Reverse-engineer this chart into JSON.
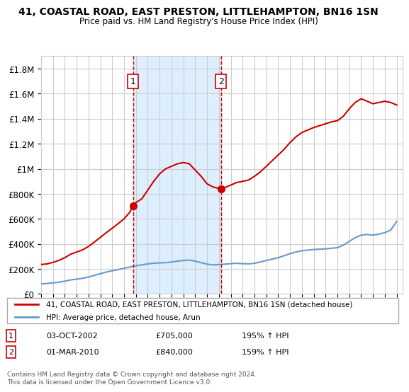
{
  "title1": "41, COASTAL ROAD, EAST PRESTON, LITTLEHAMPTON, BN16 1SN",
  "title2": "Price paid vs. HM Land Registry's House Price Index (HPI)",
  "legend_line1": "41, COASTAL ROAD, EAST PRESTON, LITTLEHAMPTON, BN16 1SN (detached house)",
  "legend_line2": "HPI: Average price, detached house, Arun",
  "annotation1_label": "1",
  "annotation1_date": "03-OCT-2002",
  "annotation1_price": "£705,000",
  "annotation1_hpi": "195% ↑ HPI",
  "annotation2_label": "2",
  "annotation2_date": "01-MAR-2010",
  "annotation2_price": "£840,000",
  "annotation2_hpi": "159% ↑ HPI",
  "footer": "Contains HM Land Registry data © Crown copyright and database right 2024.\nThis data is licensed under the Open Government Licence v3.0.",
  "red_line_color": "#cc0000",
  "blue_line_color": "#6699cc",
  "shaded_region1_color": "#ddeeff",
  "annotation_vline_color": "#cc0000",
  "background_color": "#ffffff",
  "grid_color": "#cccccc",
  "ylim": [
    0,
    1900000
  ],
  "xlim_start": 1995.0,
  "xlim_end": 2025.5,
  "marker1_x": 2002.75,
  "marker1_y": 705000,
  "marker2_x": 2010.17,
  "marker2_y": 840000,
  "vline1_x": 2002.75,
  "vline2_x": 2010.17,
  "shade_x1": 2002.75,
  "shade_x2": 2010.17
}
